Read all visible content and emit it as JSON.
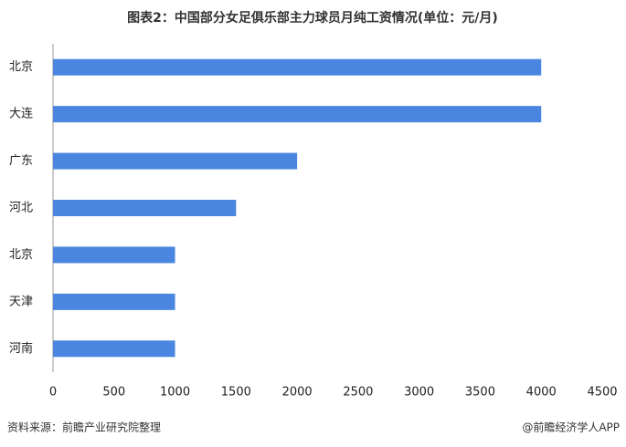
{
  "chart_data": {
    "type": "barh",
    "title": "图表2：中国部分女足俱乐部主力球员月纯工资情况(单位：元/月)",
    "categories": [
      "北京",
      "大连",
      "广东",
      "河北",
      "北京",
      "天津",
      "河南"
    ],
    "values": [
      4000,
      4000,
      2000,
      1500,
      1000,
      1000,
      1000
    ],
    "color": "#4a86df",
    "xlim": [
      0,
      4500
    ],
    "xticks": [
      0,
      500,
      1000,
      1500,
      2000,
      2500,
      3000,
      3500,
      4000,
      4500
    ],
    "grid": false,
    "source": "资料来源：前瞻产业研究院整理",
    "credit": "@前瞻经济学人APP"
  }
}
